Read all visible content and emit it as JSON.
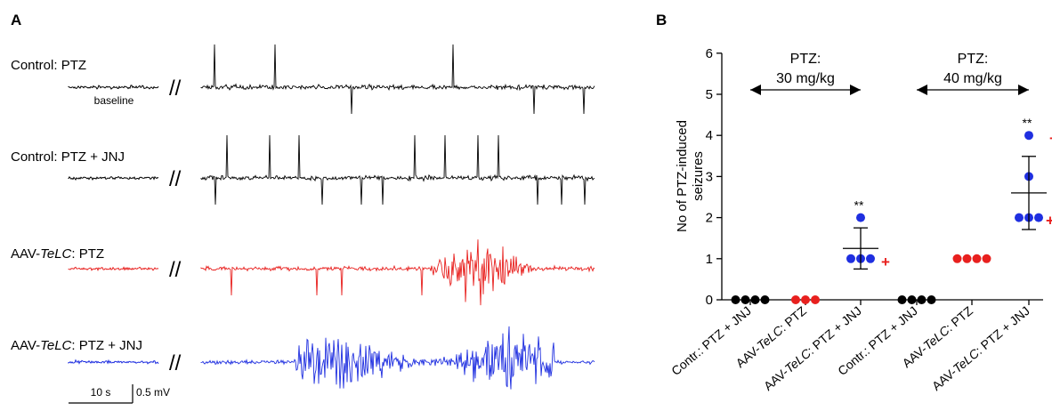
{
  "panel_a": {
    "letter": "A",
    "baseline_label": "baseline",
    "break_mark": "//",
    "scalebar": {
      "time_label": "10 s",
      "volt_label": "0.5 mV"
    },
    "traces": [
      {
        "prefix": "Control",
        "italic": "",
        "suffix": ": PTZ",
        "color": "#000000",
        "pattern": "spikes"
      },
      {
        "prefix": "Control",
        "italic": "",
        "suffix": ": PTZ + JNJ",
        "color": "#000000",
        "pattern": "spikes_dense"
      },
      {
        "prefix": "AAV-",
        "italic": "TeLC",
        "suffix": ": PTZ",
        "color": "#e8201e",
        "pattern": "spikes_burst"
      },
      {
        "prefix": "AAV-",
        "italic": "TeLC",
        "suffix": ": PTZ  + JNJ",
        "color": "#1f2fe0",
        "pattern": "seizure"
      }
    ]
  },
  "panel_b": {
    "letter": "B",
    "ylabel_line1": "No of  PTZ-induced",
    "ylabel_line2": "seizures",
    "dose_labels": [
      {
        "line1": "PTZ:",
        "line2": "30 mg/kg"
      },
      {
        "line1": "PTZ:",
        "line2": "40 mg/kg"
      }
    ],
    "significance": "**",
    "plus_marker": "+"
  },
  "chart_data": {
    "type": "scatter",
    "ylabel": "No of  PTZ-induced seizures",
    "ylim": [
      0,
      6
    ],
    "yticks": [
      0,
      1,
      2,
      3,
      4,
      5,
      6
    ],
    "groups": [
      {
        "prefix": "Contr.",
        "italic": "",
        "suffix": ": PTZ + JNJ",
        "color": "#000000",
        "values": [
          0,
          0,
          0,
          0
        ],
        "mean": null,
        "sd": null,
        "significance": "",
        "plus_value": null
      },
      {
        "prefix": "AAV-",
        "italic": "TeLC",
        "suffix": ": PTZ",
        "color": "#e8201e",
        "values": [
          0,
          0,
          0
        ],
        "mean": null,
        "sd": null,
        "significance": "",
        "plus_value": null
      },
      {
        "prefix": "AAV-",
        "italic": "TeLC",
        "suffix": ": PTZ + JNJ",
        "color": "#1f2fe0",
        "values": [
          1,
          1,
          1,
          2
        ],
        "mean": 1.25,
        "sd": 0.5,
        "significance": "**",
        "plus_value": 1
      },
      {
        "prefix": "Contr.",
        "italic": "",
        "suffix": ": PTZ + JNJ",
        "color": "#000000",
        "values": [
          0,
          0,
          0,
          0
        ],
        "mean": null,
        "sd": null,
        "significance": "",
        "plus_value": null
      },
      {
        "prefix": "AAV-",
        "italic": "TeLC",
        "suffix": ": PTZ",
        "color": "#e8201e",
        "values": [
          1,
          1,
          1,
          1
        ],
        "mean": null,
        "sd": null,
        "significance": "",
        "plus_value": null
      },
      {
        "prefix": "AAV-",
        "italic": "TeLC",
        "suffix": ": PTZ + JNJ",
        "color": "#1f2fe0",
        "values": [
          2,
          2,
          2,
          3,
          4
        ],
        "mean": 2.6,
        "sd": 0.89,
        "significance": "**",
        "plus_value": 4,
        "plus_value_2": 2
      }
    ],
    "dose_ranges": [
      {
        "label": "PTZ: 30 mg/kg",
        "from_group": 0,
        "to_group": 2
      },
      {
        "label": "PTZ: 40 mg/kg",
        "from_group": 3,
        "to_group": 5
      }
    ]
  }
}
